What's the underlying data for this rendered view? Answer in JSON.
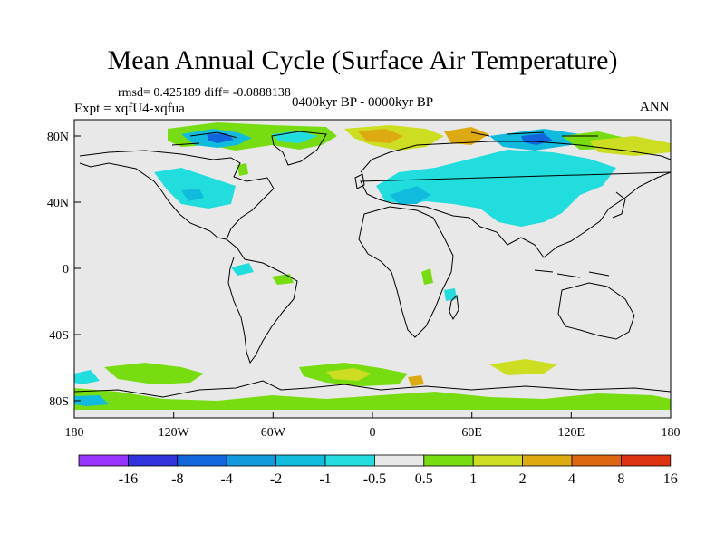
{
  "title": "Mean Annual Cycle (Surface Air Temperature)",
  "stats": "rmsd= 0.425189 diff= -0.0888138",
  "experiment": "Expt = xqfU4-xqfua",
  "period": "0400kyr BP - 0000kyr BP",
  "season": "ANN",
  "lat_labels": [
    "80N",
    "40N",
    "0",
    "40S",
    "80S"
  ],
  "lon_labels": [
    "180",
    "120W",
    "60W",
    "0",
    "60E",
    "120E",
    "180"
  ],
  "legend": {
    "labels": [
      "-16",
      "-8",
      "-4",
      "-2",
      "-1",
      "-0.5",
      "0.5",
      "1",
      "2",
      "4",
      "8",
      "16"
    ],
    "colors": [
      "#9933ff",
      "#3333dd",
      "#1166dd",
      "#1199dd",
      "#11bbdd",
      "#22dddd",
      "#e8e8e8",
      "#77dd11",
      "#ccdd22",
      "#ddaa11",
      "#dd6611",
      "#dd3311"
    ]
  },
  "colors": {
    "background_field": "#e8e8e8",
    "cyan": "#22dddd",
    "light_blue": "#11bbdd",
    "blue": "#1199dd",
    "dark_blue": "#1166dd",
    "green": "#77dd11",
    "yellow": "#ccdd22",
    "orange": "#ddaa11"
  }
}
